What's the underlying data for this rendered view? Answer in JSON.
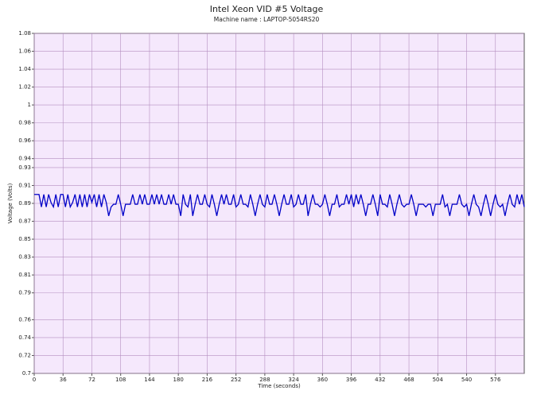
{
  "chart_data": {
    "type": "line",
    "title": "Intel Xeon VID #5 Voltage",
    "subtitle": "Machine name : LAPTOP-5054RS20",
    "x_label": "Time (seconds)",
    "y_label": "Voltage (Volts)",
    "x": [
      0,
      3,
      6,
      9,
      12,
      15,
      18,
      21,
      24,
      27,
      30,
      33,
      36,
      39,
      42,
      45,
      48,
      51,
      54,
      57,
      60,
      63,
      66,
      69,
      72,
      75,
      78,
      81,
      84,
      87,
      90,
      93,
      96,
      99,
      102,
      105,
      108,
      111,
      114,
      117,
      120,
      123,
      126,
      129,
      132,
      135,
      138,
      141,
      144,
      147,
      150,
      153,
      156,
      159,
      162,
      165,
      168,
      171,
      174,
      177,
      180,
      183,
      186,
      189,
      192,
      195,
      198,
      201,
      204,
      207,
      210,
      213,
      216,
      219,
      222,
      225,
      228,
      231,
      234,
      237,
      240,
      243,
      246,
      249,
      252,
      255,
      258,
      261,
      264,
      267,
      270,
      273,
      276,
      279,
      282,
      285,
      288,
      291,
      294,
      297,
      300,
      303,
      306,
      309,
      312,
      315,
      318,
      321,
      324,
      327,
      330,
      333,
      336,
      339,
      342,
      345,
      348,
      351,
      354,
      357,
      360,
      363,
      366,
      369,
      372,
      375,
      378,
      381,
      384,
      387,
      390,
      393,
      396,
      399,
      402,
      405,
      408,
      411,
      414,
      417,
      420,
      423,
      426,
      429,
      432,
      435,
      438,
      441,
      444,
      447,
      450,
      453,
      456,
      459,
      462,
      465,
      468,
      471,
      474,
      477,
      480,
      483,
      486,
      489,
      492,
      495,
      498,
      501,
      504,
      507,
      510,
      513,
      516,
      519,
      522,
      525,
      528,
      531,
      534,
      537,
      540,
      543,
      546,
      549,
      552,
      555,
      558,
      561,
      564,
      567,
      570,
      573,
      576,
      579,
      582,
      585,
      588,
      591,
      594,
      597,
      600,
      603,
      606,
      609,
      612
    ],
    "series": [
      {
        "name": "Voltage",
        "color": "#0000c8",
        "values": [
          0.9,
          0.9,
          0.9,
          0.886,
          0.9,
          0.886,
          0.9,
          0.891,
          0.886,
          0.9,
          0.886,
          0.9,
          0.9,
          0.886,
          0.9,
          0.886,
          0.891,
          0.9,
          0.886,
          0.9,
          0.886,
          0.9,
          0.886,
          0.9,
          0.891,
          0.9,
          0.886,
          0.9,
          0.886,
          0.9,
          0.891,
          0.876,
          0.886,
          0.889,
          0.889,
          0.9,
          0.889,
          0.876,
          0.889,
          0.889,
          0.889,
          0.9,
          0.889,
          0.889,
          0.9,
          0.889,
          0.9,
          0.889,
          0.889,
          0.9,
          0.889,
          0.9,
          0.889,
          0.9,
          0.889,
          0.889,
          0.9,
          0.889,
          0.9,
          0.889,
          0.889,
          0.876,
          0.9,
          0.889,
          0.886,
          0.9,
          0.876,
          0.889,
          0.9,
          0.889,
          0.889,
          0.9,
          0.889,
          0.886,
          0.9,
          0.889,
          0.876,
          0.889,
          0.9,
          0.889,
          0.9,
          0.889,
          0.889,
          0.9,
          0.886,
          0.889,
          0.9,
          0.889,
          0.889,
          0.886,
          0.9,
          0.889,
          0.876,
          0.889,
          0.9,
          0.889,
          0.886,
          0.9,
          0.889,
          0.889,
          0.9,
          0.889,
          0.876,
          0.889,
          0.9,
          0.889,
          0.889,
          0.9,
          0.886,
          0.889,
          0.9,
          0.889,
          0.889,
          0.9,
          0.876,
          0.889,
          0.9,
          0.889,
          0.889,
          0.886,
          0.889,
          0.9,
          0.889,
          0.876,
          0.889,
          0.889,
          0.9,
          0.886,
          0.889,
          0.889,
          0.9,
          0.889,
          0.9,
          0.886,
          0.9,
          0.889,
          0.9,
          0.889,
          0.876,
          0.889,
          0.889,
          0.9,
          0.889,
          0.876,
          0.9,
          0.889,
          0.889,
          0.886,
          0.9,
          0.889,
          0.876,
          0.889,
          0.9,
          0.889,
          0.886,
          0.889,
          0.889,
          0.9,
          0.889,
          0.876,
          0.889,
          0.889,
          0.889,
          0.886,
          0.889,
          0.889,
          0.876,
          0.889,
          0.889,
          0.889,
          0.9,
          0.886,
          0.889,
          0.876,
          0.889,
          0.889,
          0.889,
          0.9,
          0.889,
          0.886,
          0.889,
          0.876,
          0.889,
          0.9,
          0.889,
          0.886,
          0.876,
          0.889,
          0.9,
          0.889,
          0.876,
          0.889,
          0.9,
          0.889,
          0.886,
          0.889,
          0.876,
          0.889,
          0.9,
          0.889,
          0.886,
          0.9,
          0.889,
          0.9,
          0.886
        ]
      }
    ],
    "xlim": [
      0,
      612
    ],
    "xticks": [
      0,
      36,
      72,
      108,
      144,
      180,
      216,
      252,
      288,
      324,
      360,
      396,
      432,
      468,
      504,
      540,
      576
    ],
    "ylim": [
      0.7,
      1.08
    ],
    "yticks": [
      0.7,
      0.72,
      0.74,
      0.76,
      0.79,
      0.81,
      0.83,
      0.85,
      0.87,
      0.89,
      0.91,
      0.93,
      0.94,
      0.96,
      0.98,
      1.0,
      1.02,
      1.04,
      1.06,
      1.08
    ],
    "grid": true,
    "background": "#f5e8fc",
    "grid_color": "#b58fc0",
    "title_color": "#2a8a2a"
  }
}
